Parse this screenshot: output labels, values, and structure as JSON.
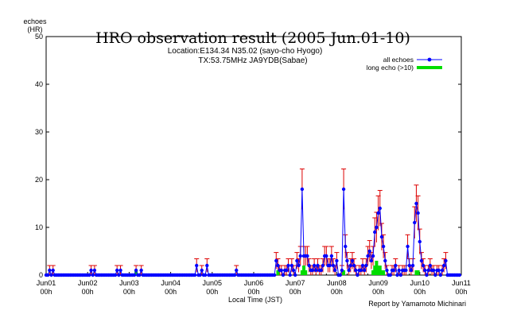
{
  "chart_data": {
    "type": "line",
    "title": "HRO observation result (2005 Jun.01-10)",
    "subtitle_lines": [
      "Location:E134.34 N35.02 (sayo-cho Hyogo)",
      "TX:53.75MHz JA9YDB(Sabae)"
    ],
    "ylabel_lines": [
      "echoes",
      "(HR)"
    ],
    "xlabel": "Local Time (JST)",
    "credit": "Report by Yamamoto Michinari",
    "ylim": [
      0,
      50
    ],
    "yticks": [
      0,
      10,
      20,
      30,
      40,
      50
    ],
    "xlim": [
      0,
      240
    ],
    "xticks": [
      {
        "x": 0,
        "line1": "Jun01",
        "line2": "00h"
      },
      {
        "x": 24,
        "line1": "Jun02",
        "line2": "00h"
      },
      {
        "x": 48,
        "line1": "Jun03",
        "line2": "00h"
      },
      {
        "x": 72,
        "line1": "Jun04",
        "line2": "00h"
      },
      {
        "x": 96,
        "line1": "Jun05",
        "line2": "00h"
      },
      {
        "x": 120,
        "line1": "Jun06",
        "line2": "00h"
      },
      {
        "x": 144,
        "line1": "Jun07",
        "line2": "00h"
      },
      {
        "x": 168,
        "line1": "Jun08",
        "line2": "00h"
      },
      {
        "x": 192,
        "line1": "Jun09",
        "line2": "00h"
      },
      {
        "x": 216,
        "line1": "Jun10",
        "line2": "00h"
      },
      {
        "x": 240,
        "line1": "Jun11",
        "line2": "00h"
      }
    ],
    "x_unit": "hours since Jun01 00h",
    "grid": false,
    "legend_position": "top-right",
    "series": [
      {
        "name": "all echoes",
        "color": "#0000ff",
        "error_color": "#dd0000",
        "points": [
          [
            2,
            1
          ],
          [
            4,
            1
          ],
          [
            26,
            1
          ],
          [
            28,
            1
          ],
          [
            41,
            1
          ],
          [
            43,
            1
          ],
          [
            52,
            1
          ],
          [
            55,
            1
          ],
          [
            87,
            2
          ],
          [
            90,
            1
          ],
          [
            93,
            2
          ],
          [
            110,
            1
          ],
          [
            133,
            3
          ],
          [
            134,
            2
          ],
          [
            135,
            1
          ],
          [
            136,
            1
          ],
          [
            137,
            0
          ],
          [
            138,
            1
          ],
          [
            139,
            1
          ],
          [
            140,
            2
          ],
          [
            141,
            0
          ],
          [
            142,
            2
          ],
          [
            143,
            1
          ],
          [
            144,
            0
          ],
          [
            145,
            3
          ],
          [
            146,
            2
          ],
          [
            147,
            4
          ],
          [
            148,
            18
          ],
          [
            149,
            4
          ],
          [
            150,
            4
          ],
          [
            151,
            4
          ],
          [
            152,
            2
          ],
          [
            153,
            1
          ],
          [
            154,
            1
          ],
          [
            155,
            2
          ],
          [
            156,
            1
          ],
          [
            157,
            2
          ],
          [
            158,
            1
          ],
          [
            159,
            1
          ],
          [
            160,
            2
          ],
          [
            161,
            4
          ],
          [
            162,
            4
          ],
          [
            163,
            2
          ],
          [
            164,
            2
          ],
          [
            165,
            4
          ],
          [
            166,
            2
          ],
          [
            167,
            1
          ],
          [
            168,
            3
          ],
          [
            169,
            0
          ],
          [
            170,
            0
          ],
          [
            171,
            1
          ],
          [
            172,
            18
          ],
          [
            173,
            6
          ],
          [
            174,
            3
          ],
          [
            175,
            1
          ],
          [
            176,
            2
          ],
          [
            177,
            3
          ],
          [
            178,
            2
          ],
          [
            179,
            1
          ],
          [
            180,
            0
          ],
          [
            181,
            1
          ],
          [
            182,
            1
          ],
          [
            183,
            2
          ],
          [
            184,
            1
          ],
          [
            185,
            2
          ],
          [
            186,
            4
          ],
          [
            187,
            5
          ],
          [
            188,
            3
          ],
          [
            189,
            4
          ],
          [
            190,
            9
          ],
          [
            191,
            10
          ],
          [
            192,
            13
          ],
          [
            193,
            14
          ],
          [
            194,
            8
          ],
          [
            195,
            6
          ],
          [
            196,
            3
          ],
          [
            197,
            1
          ],
          [
            198,
            0
          ],
          [
            199,
            0
          ],
          [
            200,
            1
          ],
          [
            201,
            1
          ],
          [
            202,
            2
          ],
          [
            203,
            0
          ],
          [
            204,
            1
          ],
          [
            205,
            0
          ],
          [
            206,
            1
          ],
          [
            207,
            1
          ],
          [
            208,
            1
          ],
          [
            209,
            6
          ],
          [
            210,
            2
          ],
          [
            211,
            1
          ],
          [
            212,
            2
          ],
          [
            213,
            11
          ],
          [
            214,
            15
          ],
          [
            215,
            13
          ],
          [
            216,
            7
          ],
          [
            217,
            3
          ],
          [
            218,
            2
          ],
          [
            219,
            1
          ],
          [
            220,
            0
          ],
          [
            221,
            1
          ],
          [
            222,
            2
          ],
          [
            223,
            1
          ],
          [
            224,
            1
          ],
          [
            225,
            0
          ],
          [
            226,
            1
          ],
          [
            227,
            1
          ],
          [
            228,
            0
          ],
          [
            229,
            1
          ],
          [
            230,
            2
          ],
          [
            231,
            3
          ]
        ]
      },
      {
        "name": "long echo (>10)",
        "color": "#00dd00",
        "points": [
          [
            52,
            1
          ],
          [
            134,
            1
          ],
          [
            148,
            1
          ],
          [
            149,
            2
          ],
          [
            150,
            1
          ],
          [
            172,
            1
          ],
          [
            189,
            1
          ],
          [
            190,
            2
          ],
          [
            191,
            3
          ],
          [
            192,
            2
          ],
          [
            193,
            2
          ],
          [
            194,
            1
          ],
          [
            195,
            1
          ],
          [
            214,
            1
          ],
          [
            215,
            1
          ]
        ]
      }
    ]
  }
}
